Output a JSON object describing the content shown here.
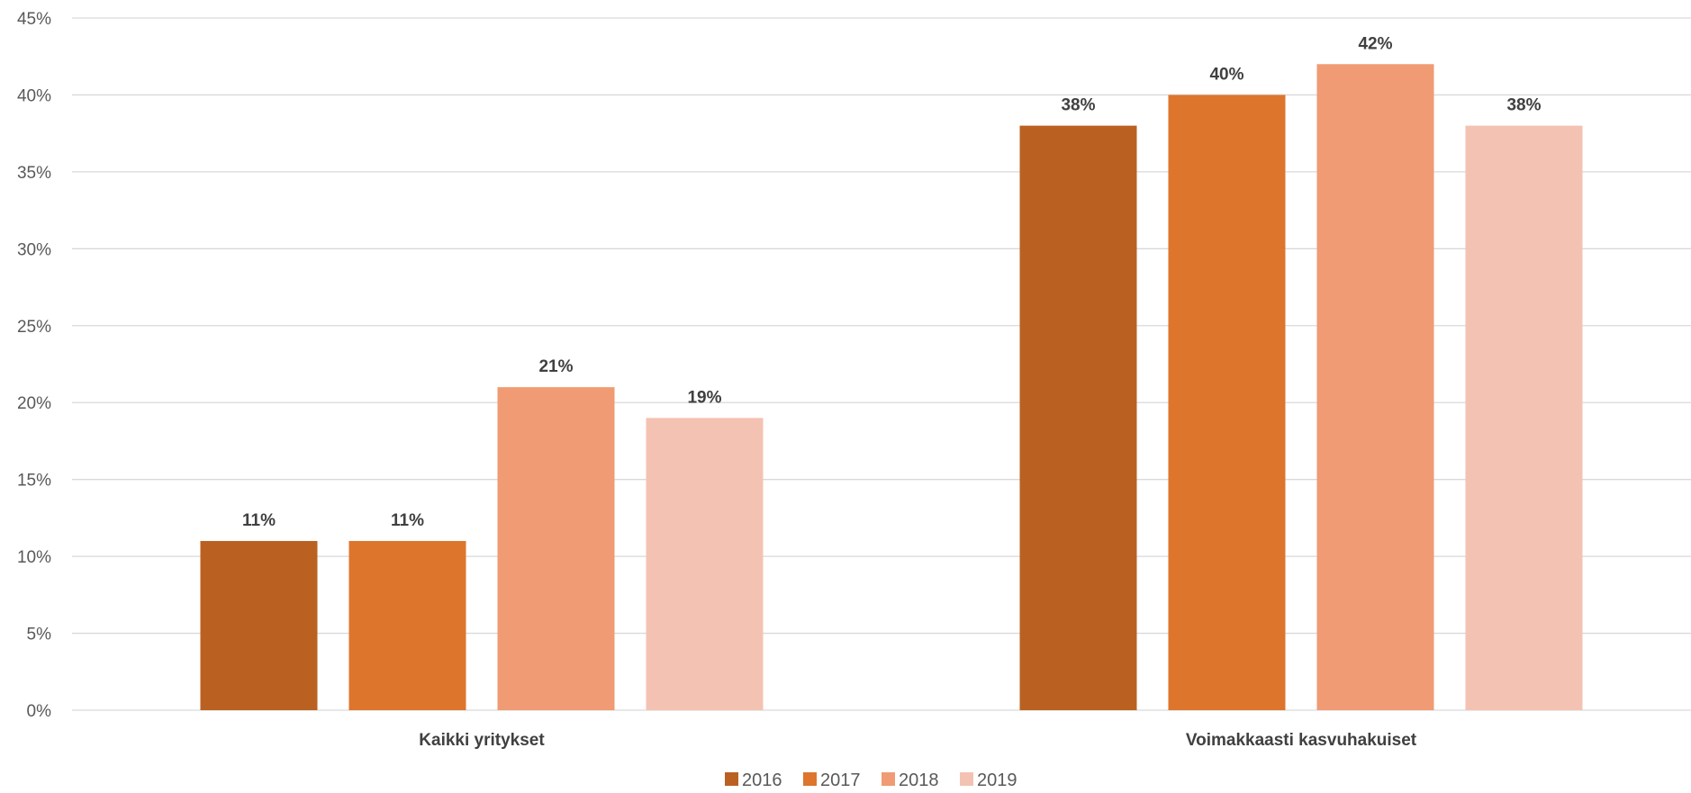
{
  "chart_data": {
    "type": "bar",
    "title": "",
    "xlabel": "",
    "ylabel": "",
    "categories": [
      "Kaikki yritykset",
      "Voimakkaasti kasvuhakuiset"
    ],
    "series": [
      {
        "name": "2016",
        "values": [
          11,
          38
        ],
        "color": "#BA6121"
      },
      {
        "name": "2017",
        "values": [
          11,
          40
        ],
        "color": "#DD752D"
      },
      {
        "name": "2018",
        "values": [
          21,
          42
        ],
        "color": "#F09B73"
      },
      {
        "name": "2019",
        "values": [
          19,
          38
        ],
        "color": "#F4C2B2"
      }
    ],
    "ylim": [
      0,
      45
    ],
    "y_ticks": [
      0,
      5,
      10,
      15,
      20,
      25,
      30,
      35,
      40,
      45
    ],
    "y_tick_labels": [
      "0%",
      "5%",
      "10%",
      "15%",
      "20%",
      "25%",
      "30%",
      "35%",
      "40%",
      "45%"
    ],
    "data_labels": [
      [
        "11%",
        "38%"
      ],
      [
        "11%",
        "40%"
      ],
      [
        "21%",
        "42%"
      ],
      [
        "19%",
        "38%"
      ]
    ],
    "grid": true,
    "legend_position": "bottom"
  }
}
